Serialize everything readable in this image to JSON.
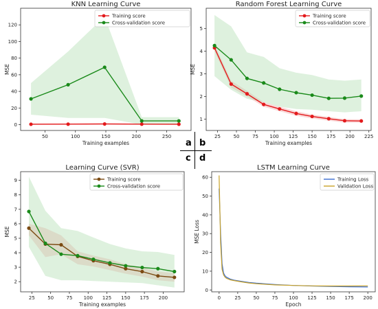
{
  "panel_labels": [
    "a",
    "b",
    "c",
    "d"
  ],
  "colors": {
    "train": "#e31a1c",
    "cv": "#1a8a1a",
    "train_svr": "#7b4a12",
    "band_train": "#f4a9a9",
    "band_cv": "#b5dfb5",
    "loss_train": "#3a6ccf",
    "loss_val": "#c9a227"
  },
  "chart_data": [
    {
      "type": "line",
      "title": "KNN Learning Curve",
      "xlabel": "Training examples",
      "ylabel": "MSE",
      "xlim": [
        10,
        290
      ],
      "ylim": [
        -7,
        140
      ],
      "xticks": [
        50,
        100,
        150,
        200,
        250
      ],
      "yticks": [
        0,
        20,
        40,
        60,
        80,
        100,
        120
      ],
      "legend_position": "top-right",
      "series": [
        {
          "name": "Training score",
          "color": "train",
          "x": [
            27,
            88,
            148,
            209,
            270
          ],
          "y": [
            0.5,
            0.6,
            0.8,
            0.6,
            0.5
          ],
          "band_low": [
            0,
            0,
            0.2,
            0.1,
            0
          ],
          "band_high": [
            1.5,
            1.6,
            1.9,
            1.3,
            1.0
          ],
          "band_color": "band_train"
        },
        {
          "name": "Cross-validation score",
          "color": "cv",
          "x": [
            27,
            88,
            148,
            209,
            270
          ],
          "y": [
            31,
            48,
            69,
            4.5,
            4.5
          ],
          "band_low": [
            12,
            8,
            8,
            0,
            0
          ],
          "band_high": [
            50,
            88,
            130,
            9,
            9
          ],
          "band_color": "band_cv"
        }
      ]
    },
    {
      "type": "line",
      "title": "Random Forest Learning Curve",
      "xlabel": "Training examples",
      "ylabel": "MSE",
      "xlim": [
        10,
        228
      ],
      "ylim": [
        0.5,
        5.9
      ],
      "xticks": [
        25,
        50,
        75,
        100,
        125,
        150,
        175,
        200,
        225
      ],
      "yticks": [
        1,
        2,
        3,
        4,
        5
      ],
      "legend_position": "top-right",
      "series": [
        {
          "name": "Training score",
          "color": "train",
          "x": [
            21,
            43,
            64,
            86,
            107,
            129,
            150,
            172,
            193,
            215
          ],
          "y": [
            4.15,
            2.55,
            2.12,
            1.65,
            1.45,
            1.25,
            1.12,
            1.02,
            0.93,
            0.92
          ],
          "band_low": [
            4.0,
            2.4,
            2.0,
            1.55,
            1.35,
            1.15,
            1.03,
            0.93,
            0.85,
            0.85
          ],
          "band_high": [
            4.3,
            2.7,
            2.25,
            1.75,
            1.55,
            1.35,
            1.2,
            1.1,
            1.0,
            0.99
          ],
          "band_color": "band_train"
        },
        {
          "name": "Cross-validation score",
          "color": "cv",
          "x": [
            21,
            43,
            64,
            86,
            107,
            129,
            150,
            172,
            193,
            215
          ],
          "y": [
            4.25,
            3.62,
            2.8,
            2.6,
            2.32,
            2.17,
            2.06,
            1.92,
            1.93,
            2.02
          ],
          "band_low": [
            2.9,
            2.3,
            1.9,
            1.75,
            1.55,
            1.45,
            1.42,
            1.35,
            1.3,
            1.35
          ],
          "band_high": [
            5.6,
            5.1,
            3.95,
            3.75,
            3.25,
            3.05,
            2.95,
            2.75,
            2.7,
            2.75
          ],
          "band_color": "band_cv"
        }
      ]
    },
    {
      "type": "line",
      "title": "Learning Curve (SVR)",
      "xlabel": "Training examples",
      "ylabel": "MSE",
      "xlim": [
        10,
        228
      ],
      "ylim": [
        1.3,
        9.6
      ],
      "xticks": [
        25,
        50,
        75,
        100,
        125,
        150,
        175,
        200
      ],
      "yticks": [
        2,
        3,
        4,
        5,
        6,
        7,
        8,
        9
      ],
      "legend_position": "top-right",
      "series": [
        {
          "name": "Training score",
          "color": "train_svr",
          "x": [
            21,
            43,
            64,
            86,
            107,
            129,
            150,
            172,
            193,
            215
          ],
          "y": [
            5.7,
            4.6,
            4.55,
            3.75,
            3.45,
            3.2,
            2.9,
            2.7,
            2.4,
            2.3
          ],
          "band_low": [
            5.2,
            3.7,
            3.9,
            3.2,
            3.05,
            2.8,
            2.55,
            2.35,
            2.1,
            2.0
          ],
          "band_high": [
            6.0,
            5.7,
            5.2,
            4.1,
            3.8,
            3.55,
            3.2,
            3.0,
            2.7,
            2.6
          ],
          "band_color": "band_train"
        },
        {
          "name": "Cross-validation score",
          "color": "cv",
          "x": [
            21,
            43,
            64,
            86,
            107,
            129,
            150,
            172,
            193,
            215
          ],
          "y": [
            6.85,
            4.65,
            3.9,
            3.8,
            3.55,
            3.3,
            3.1,
            2.98,
            2.9,
            2.7
          ],
          "band_low": [
            4.4,
            2.4,
            2.1,
            2.1,
            2.05,
            2.0,
            1.95,
            1.9,
            1.75,
            1.6
          ],
          "band_high": [
            9.25,
            6.9,
            5.7,
            5.5,
            5.05,
            4.6,
            4.3,
            4.1,
            4.05,
            3.85
          ],
          "band_color": "band_cv"
        }
      ]
    },
    {
      "type": "line",
      "title": "LSTM Learning Curve",
      "xlabel": "Epoch",
      "ylabel": "MSE Loss",
      "xlim": [
        -10,
        210
      ],
      "ylim": [
        -1,
        63
      ],
      "xticks": [
        0,
        25,
        50,
        75,
        100,
        125,
        150,
        175,
        200
      ],
      "yticks": [
        0,
        10,
        20,
        30,
        40,
        50,
        60
      ],
      "legend_position": "top-right",
      "series": [
        {
          "name": "Training Loss",
          "color": "loss_train",
          "x": [
            0,
            2,
            4,
            6,
            8,
            10,
            15,
            20,
            30,
            40,
            50,
            75,
            100,
            125,
            150,
            175,
            200
          ],
          "y": [
            54,
            30,
            14,
            9,
            7.5,
            6.8,
            5.8,
            5.2,
            4.6,
            4.0,
            3.6,
            2.9,
            2.4,
            2.1,
            1.9,
            1.7,
            1.6
          ]
        },
        {
          "name": "Validation Loss",
          "color": "loss_val",
          "x": [
            0,
            2,
            4,
            6,
            8,
            10,
            15,
            20,
            30,
            40,
            50,
            75,
            100,
            125,
            150,
            175,
            200
          ],
          "y": [
            61,
            25,
            11,
            8,
            6.8,
            6.2,
            5.4,
            5.0,
            4.3,
            3.7,
            3.3,
            2.7,
            2.4,
            2.2,
            2.1,
            2.1,
            2.2
          ]
        }
      ]
    }
  ]
}
